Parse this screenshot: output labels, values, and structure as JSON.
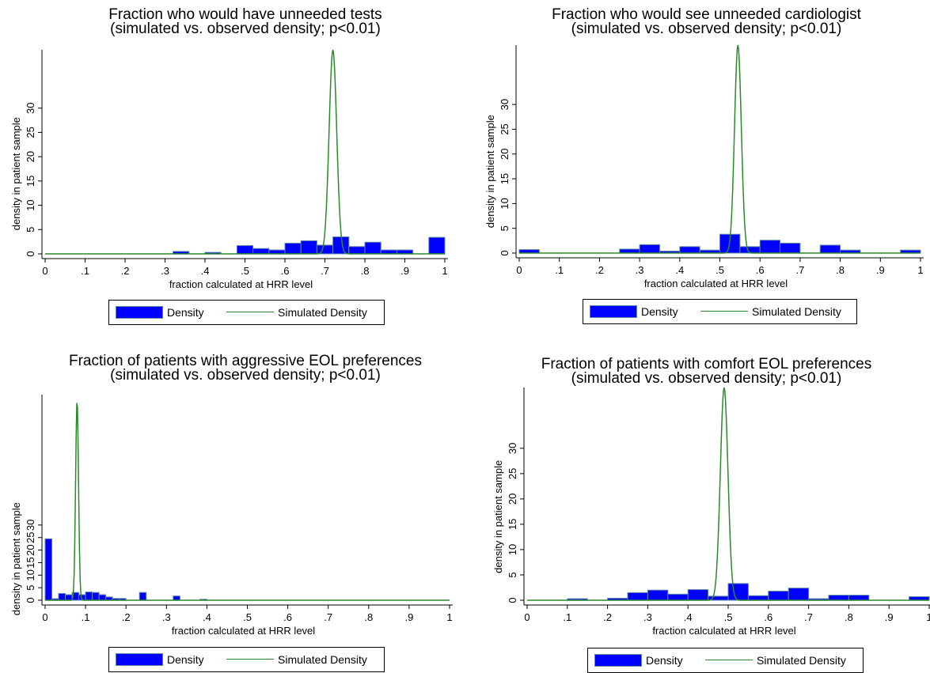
{
  "colors": {
    "bar": "#0000ff",
    "bar_edge": "#5f8aa6",
    "line": "#2a8a2a",
    "axis": "#000000"
  },
  "legend_labels": {
    "density": "Density",
    "simulated": "Simulated Density"
  },
  "chart_data": [
    {
      "type": "bar",
      "title_line1": "Fraction who would have unneeded tests",
      "title_line2": "(simulated vs. observed density; p<0.01)",
      "xlabel": "fraction calculated at HRR level",
      "ylabel": "density in patient sample",
      "xlim": [
        0,
        1
      ],
      "ylim": [
        0,
        42
      ],
      "xticks": [
        "0",
        ".1",
        ".2",
        ".3",
        ".4",
        ".5",
        ".6",
        ".7",
        ".8",
        ".9",
        "1"
      ],
      "yticks": [
        "0",
        "5",
        "10",
        "15",
        "20",
        "25",
        "30"
      ],
      "bin_width": 0.04,
      "bins": [
        [
          0.32,
          0.5
        ],
        [
          0.4,
          0.3
        ],
        [
          0.48,
          1.7
        ],
        [
          0.52,
          1.1
        ],
        [
          0.56,
          0.8
        ],
        [
          0.6,
          2.2
        ],
        [
          0.64,
          2.7
        ],
        [
          0.68,
          1.8
        ],
        [
          0.72,
          3.5
        ],
        [
          0.76,
          1.5
        ],
        [
          0.8,
          2.4
        ],
        [
          0.84,
          0.8
        ],
        [
          0.88,
          0.8
        ],
        [
          0.96,
          3.4
        ]
      ],
      "simulated": {
        "mean": 0.72,
        "sd": 0.0095,
        "peak": 42
      }
    },
    {
      "type": "bar",
      "title_line1": "Fraction who would see unneeded cardiologist",
      "title_line2": "(simulated vs. observed density; p<0.01)",
      "xlabel": "fraction calculated at HRR level",
      "ylabel": "density in patient sample",
      "xlim": [
        0,
        1
      ],
      "ylim": [
        0,
        42
      ],
      "xticks": [
        "0",
        ".1",
        ".2",
        ".3",
        ".4",
        ".5",
        ".6",
        ".7",
        ".8",
        ".9",
        "1"
      ],
      "yticks": [
        "0",
        "5",
        "10",
        "15",
        "20",
        "25",
        "30"
      ],
      "bin_width": 0.05,
      "bins": [
        [
          0.0,
          0.7
        ],
        [
          0.25,
          0.8
        ],
        [
          0.3,
          1.7
        ],
        [
          0.35,
          0.4
        ],
        [
          0.4,
          1.3
        ],
        [
          0.45,
          0.6
        ],
        [
          0.5,
          3.8
        ],
        [
          0.55,
          1.3
        ],
        [
          0.6,
          2.6
        ],
        [
          0.65,
          2.0
        ],
        [
          0.75,
          1.6
        ],
        [
          0.8,
          0.6
        ],
        [
          0.95,
          0.6
        ]
      ],
      "simulated": {
        "mean": 0.545,
        "sd": 0.0085,
        "peak": 42
      }
    },
    {
      "type": "bar",
      "title_line1": "Fraction of patients with aggressive EOL preferences",
      "title_line2": "(simulated vs. observed density; p<0.01)",
      "xlabel": "fraction calculated at HRR level",
      "ylabel": "density in patient sample",
      "xlim": [
        0,
        1
      ],
      "ylim": [
        0,
        82
      ],
      "xticks": [
        "0",
        ".1",
        ".2",
        ".3",
        ".4",
        ".5",
        ".6",
        ".7",
        ".8",
        ".9",
        "1"
      ],
      "yticks": [
        "0",
        "5",
        "10",
        "15",
        "20",
        "25",
        "30"
      ],
      "bin_width": 0.0167,
      "bins": [
        [
          0.0,
          24.5
        ],
        [
          0.0167,
          0.6
        ],
        [
          0.0333,
          2.7
        ],
        [
          0.05,
          2.2
        ],
        [
          0.0667,
          3.1
        ],
        [
          0.0833,
          2.2
        ],
        [
          0.1,
          3.3
        ],
        [
          0.1167,
          3.1
        ],
        [
          0.1333,
          2.2
        ],
        [
          0.15,
          1.3
        ],
        [
          0.1667,
          0.7
        ],
        [
          0.1833,
          0.7
        ],
        [
          0.2333,
          3.1
        ],
        [
          0.3167,
          1.7
        ],
        [
          0.3833,
          0.4
        ]
      ],
      "simulated": {
        "mean": 0.079,
        "sd": 0.0036,
        "peak": 80
      }
    },
    {
      "type": "bar",
      "title_line1": "Fraction of patients with comfort EOL preferences",
      "title_line2": "(simulated vs. observed density; p<0.01)",
      "xlabel": "fraction calculated at HRR level",
      "ylabel": "density in patient sample",
      "xlim": [
        0,
        1
      ],
      "ylim": [
        0,
        42
      ],
      "xticks": [
        "0",
        ".1",
        ".2",
        ".3",
        ".4",
        ".5",
        ".6",
        ".7",
        ".8",
        ".9",
        "1"
      ],
      "yticks": [
        "0",
        "5",
        "10",
        "15",
        "20",
        "25",
        "30"
      ],
      "bin_width": 0.05,
      "bins": [
        [
          0.1,
          0.3
        ],
        [
          0.2,
          0.4
        ],
        [
          0.25,
          1.5
        ],
        [
          0.3,
          2.0
        ],
        [
          0.35,
          1.2
        ],
        [
          0.4,
          2.1
        ],
        [
          0.45,
          0.8
        ],
        [
          0.5,
          3.3
        ],
        [
          0.55,
          0.9
        ],
        [
          0.6,
          1.8
        ],
        [
          0.65,
          2.4
        ],
        [
          0.7,
          0.3
        ],
        [
          0.75,
          1.0
        ],
        [
          0.8,
          1.0
        ],
        [
          0.95,
          0.7
        ]
      ],
      "simulated": {
        "mean": 0.49,
        "sd": 0.0095,
        "peak": 42
      }
    }
  ]
}
